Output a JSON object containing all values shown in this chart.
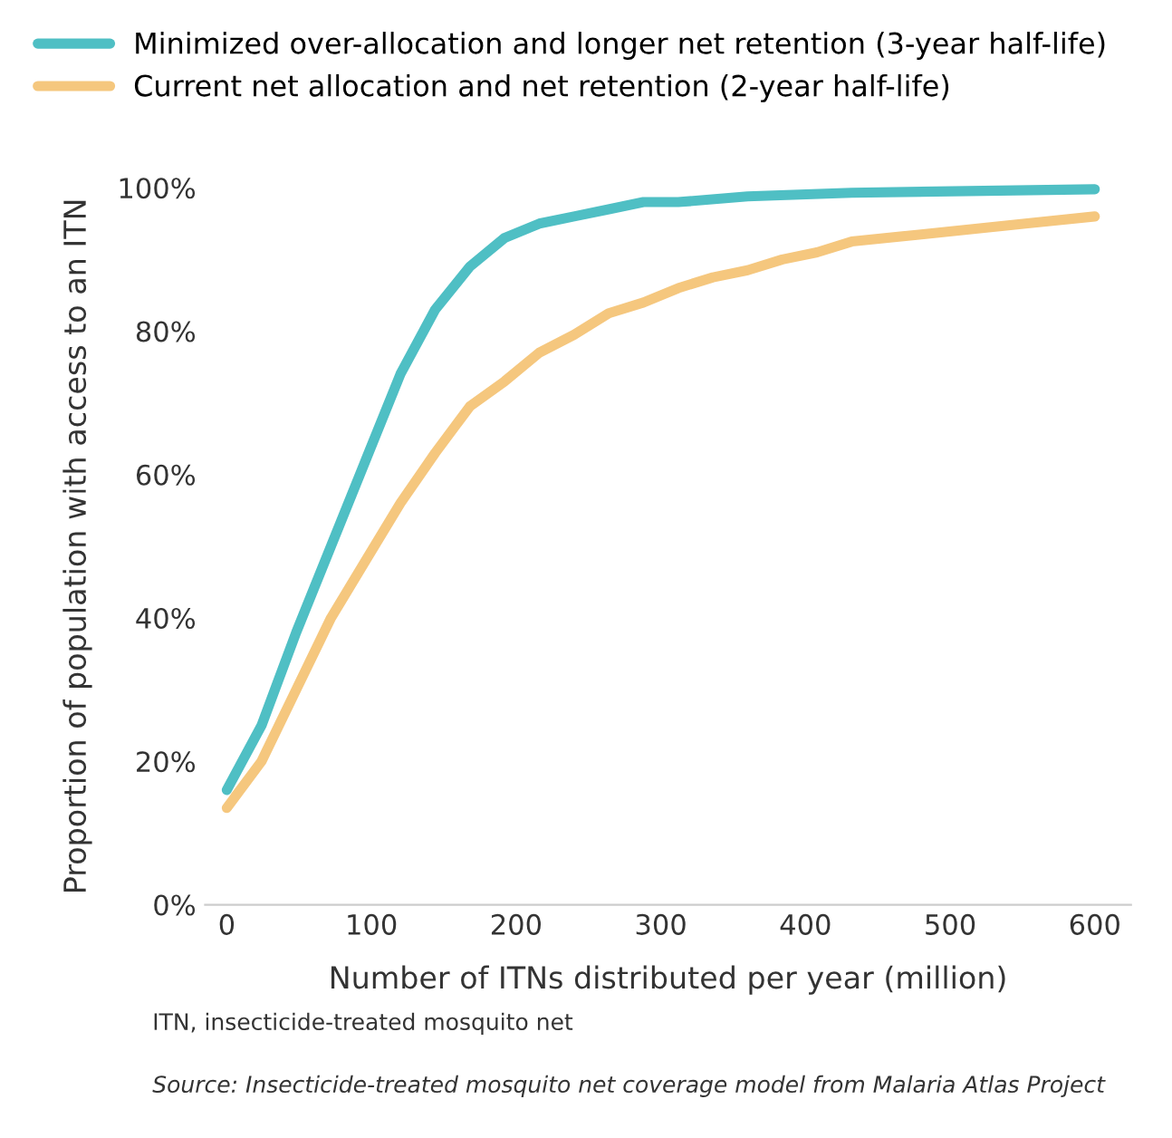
{
  "chart_data": {
    "type": "line",
    "xlabel": "Number of ITNs distributed per year (million)",
    "ylabel": "Proportion of population with access to an ITN",
    "series": [
      {
        "name": "Minimized over-allocation and longer net retention (3-year half-life)",
        "color": "#4fbfc4",
        "x": [
          0,
          24,
          48,
          72,
          96,
          120,
          144,
          168,
          192,
          216,
          240,
          264,
          288,
          312,
          360,
          432,
          600
        ],
        "values": [
          16,
          25,
          38,
          50,
          62,
          74,
          83,
          89,
          93,
          95,
          96,
          97,
          98,
          98,
          98.8,
          99.3,
          99.8
        ]
      },
      {
        "name": "Current net allocation and net retention (2-year half-life)",
        "color": "#f5c77e",
        "x": [
          0,
          24,
          48,
          72,
          96,
          120,
          144,
          168,
          192,
          216,
          240,
          264,
          288,
          312,
          336,
          360,
          384,
          408,
          432,
          480,
          504,
          528,
          552,
          600
        ],
        "values": [
          13.5,
          20,
          30,
          40,
          48,
          56,
          63,
          69.5,
          73,
          77,
          79.5,
          82.5,
          84,
          86,
          87.5,
          88.5,
          90,
          91,
          92.5,
          93.5,
          94,
          94.5,
          95,
          96
        ]
      }
    ],
    "xlim": [
      -15,
      625
    ],
    "xticks": [
      0,
      100,
      200,
      300,
      400,
      500,
      600
    ],
    "ylim": [
      0,
      100
    ],
    "yticks": [
      {
        "value": 0,
        "label": "0%"
      },
      {
        "value": 20,
        "label": "20%"
      },
      {
        "value": 40,
        "label": "40%"
      },
      {
        "value": 60,
        "label": "60%"
      },
      {
        "value": 80,
        "label": "80%"
      },
      {
        "value": 100,
        "label": "100%"
      }
    ],
    "legend": "top",
    "marker": "none",
    "line_style": "solid",
    "annotations": [
      "ITN, insecticide-treated mosquito net",
      "Source: Insecticide-treated mosquito net coverage model from Malaria Atlas Project"
    ]
  }
}
